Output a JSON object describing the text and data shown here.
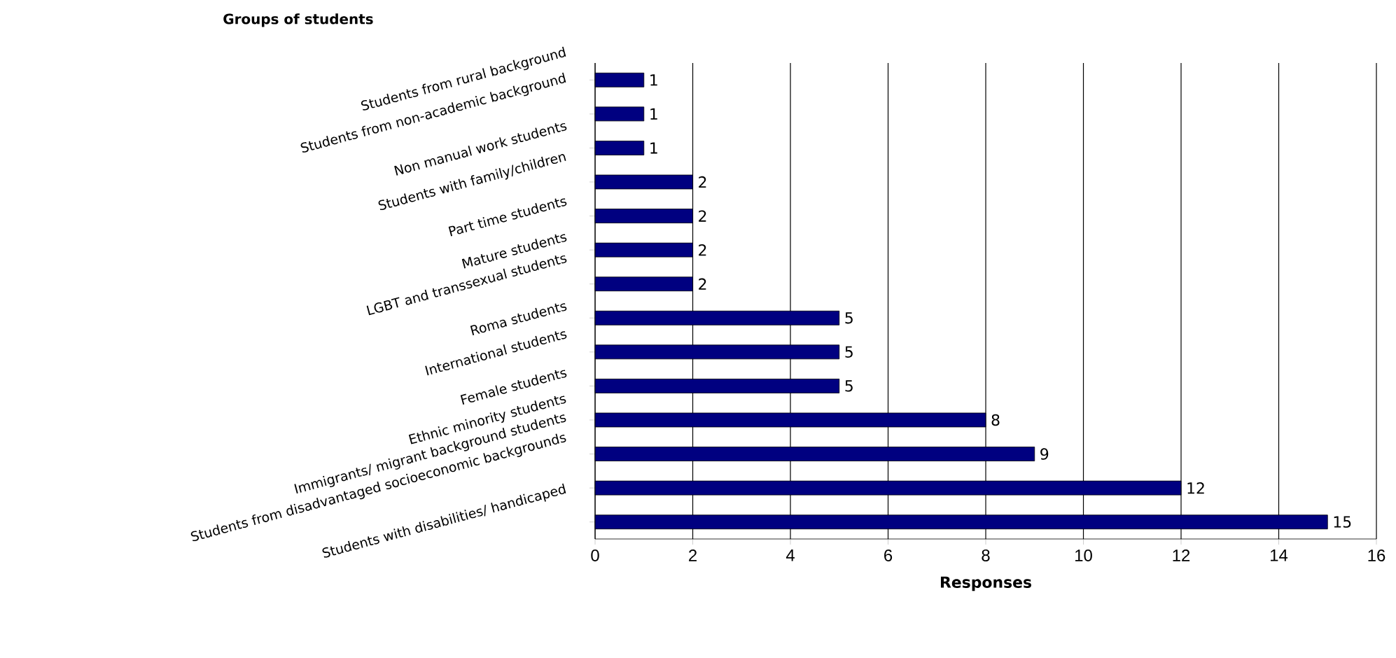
{
  "chart_data": {
    "type": "bar",
    "orientation": "horizontal",
    "ylabel": "Groups of students",
    "xlabel": "Responses",
    "categories": [
      "Students from rural background",
      "Students from non-academic background",
      "Non manual work students",
      "Students with family/children",
      "Part time students",
      "Mature students",
      "LGBT and transsexual students",
      "Roma students",
      "International students",
      "Female students",
      "Ethnic minority students",
      "Immigrants/ migrant background students",
      "Students from disadvantaged socioeconomic backgrounds",
      "Students with disabilities/ handicaped"
    ],
    "values": [
      1,
      1,
      1,
      2,
      2,
      2,
      2,
      5,
      5,
      5,
      8,
      9,
      12,
      15
    ],
    "color": "#000080",
    "xlim": [
      0,
      16
    ],
    "xticks": [
      0,
      2,
      4,
      6,
      8,
      10,
      12,
      14,
      16
    ],
    "grid": "x",
    "data_labels": true
  }
}
